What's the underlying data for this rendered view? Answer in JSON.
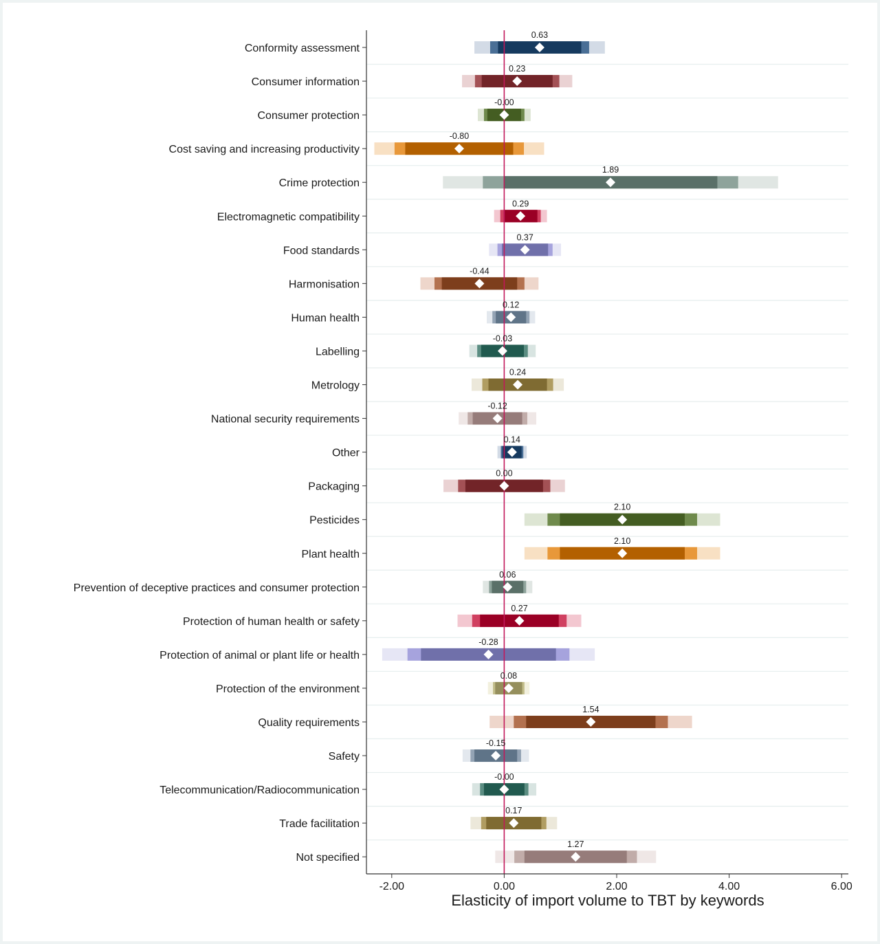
{
  "chart_data": {
    "type": "forest",
    "title": "",
    "xlabel": "Elasticity of import volume to TBT by keywords",
    "ylabel": "",
    "xlim": [
      -2.45,
      6.12
    ],
    "xticks": [
      -2,
      0,
      2,
      4,
      6
    ],
    "xtick_labels": [
      "-2.00",
      "0.00",
      "2.00",
      "4.00",
      "6.00"
    ],
    "reference_line": 0,
    "reference_line_color": "#c2185b",
    "grid": "horizontal",
    "ci_levels": [
      "99%",
      "95%",
      "90%"
    ],
    "rows": [
      {
        "label": "Conformity assessment",
        "value": 0.63,
        "value_label": "0.63",
        "ci99": [
          -0.53,
          1.79
        ],
        "ci95": [
          -0.25,
          1.51
        ],
        "ci90": [
          -0.11,
          1.37
        ],
        "colors": [
          "#d3dbe6",
          "#4a6f96",
          "#163a5f"
        ]
      },
      {
        "label": "Consumer information",
        "value": 0.23,
        "value_label": "0.23",
        "ci99": [
          -0.75,
          1.21
        ],
        "ci95": [
          -0.52,
          0.98
        ],
        "ci90": [
          -0.4,
          0.86
        ],
        "colors": [
          "#ead2d3",
          "#a35155",
          "#722428"
        ]
      },
      {
        "label": "Consumer protection",
        "value": 0.0,
        "value_label": "-0.00",
        "ci99": [
          -0.47,
          0.47
        ],
        "ci95": [
          -0.36,
          0.36
        ],
        "ci90": [
          -0.3,
          0.3
        ],
        "colors": [
          "#dde5d3",
          "#6f8a4c",
          "#445d22"
        ]
      },
      {
        "label": "Cost saving and increasing productivity",
        "value": -0.8,
        "value_label": "-0.80",
        "ci99": [
          -2.31,
          0.71
        ],
        "ci95": [
          -1.95,
          0.35
        ],
        "ci90": [
          -1.76,
          0.16
        ],
        "colors": [
          "#f8e0c3",
          "#e8983a",
          "#b36000"
        ]
      },
      {
        "label": "Crime protection",
        "value": 1.89,
        "value_label": "1.89",
        "ci99": [
          -1.09,
          4.87
        ],
        "ci95": [
          -0.38,
          4.16
        ],
        "ci90": [
          -0.01,
          3.79
        ],
        "colors": [
          "#e0e6e3",
          "#8ea39b",
          "#5a7068"
        ]
      },
      {
        "label": "Electromagnetic compatibility",
        "value": 0.29,
        "value_label": "0.29",
        "ci99": [
          -0.18,
          0.76
        ],
        "ci95": [
          -0.07,
          0.65
        ],
        "ci90": [
          -0.01,
          0.59
        ],
        "colors": [
          "#f3c7d0",
          "#d04060",
          "#9a0025"
        ]
      },
      {
        "label": "Food standards",
        "value": 0.37,
        "value_label": "0.37",
        "ci99": [
          -0.27,
          1.01
        ],
        "ci95": [
          -0.12,
          0.86
        ],
        "ci90": [
          -0.04,
          0.78
        ],
        "colors": [
          "#e6e6f5",
          "#a6a3dd",
          "#7070aa"
        ]
      },
      {
        "label": "Harmonisation",
        "value": -0.44,
        "value_label": "-0.44",
        "ci99": [
          -1.49,
          0.61
        ],
        "ci95": [
          -1.24,
          0.36
        ],
        "ci90": [
          -1.11,
          0.23
        ],
        "colors": [
          "#eed6cb",
          "#b3714f",
          "#7d3e1c"
        ]
      },
      {
        "label": "Human health",
        "value": 0.12,
        "value_label": "0.12",
        "ci99": [
          -0.31,
          0.55
        ],
        "ci95": [
          -0.21,
          0.45
        ],
        "ci90": [
          -0.15,
          0.39
        ],
        "colors": [
          "#e3e8ee",
          "#93a3b4",
          "#5f7488"
        ]
      },
      {
        "label": "Labelling",
        "value": -0.03,
        "value_label": "-0.03",
        "ci99": [
          -0.62,
          0.56
        ],
        "ci95": [
          -0.48,
          0.42
        ],
        "ci90": [
          -0.41,
          0.35
        ],
        "colors": [
          "#d8e4e1",
          "#5b8d82",
          "#215a4f"
        ]
      },
      {
        "label": "Metrology",
        "value": 0.24,
        "value_label": "0.24",
        "ci99": [
          -0.58,
          1.06
        ],
        "ci95": [
          -0.39,
          0.87
        ],
        "ci90": [
          -0.28,
          0.76
        ],
        "colors": [
          "#ece8da",
          "#b09d62",
          "#7f6b32"
        ]
      },
      {
        "label": "National security requirements",
        "value": -0.12,
        "value_label": "-0.12",
        "ci99": [
          -0.81,
          0.57
        ],
        "ci95": [
          -0.65,
          0.41
        ],
        "ci90": [
          -0.56,
          0.32
        ],
        "colors": [
          "#efe7e6",
          "#c1aca9",
          "#967c7a"
        ]
      },
      {
        "label": "Other",
        "value": 0.14,
        "value_label": "0.14",
        "ci99": [
          -0.12,
          0.4
        ],
        "ci95": [
          -0.06,
          0.34
        ],
        "ci90": [
          -0.03,
          0.31
        ],
        "colors": [
          "#d3dbe6",
          "#4a6f96",
          "#163a5f"
        ]
      },
      {
        "label": "Packaging",
        "value": 0.0,
        "value_label": "0.00",
        "ci99": [
          -1.08,
          1.08
        ],
        "ci95": [
          -0.82,
          0.82
        ],
        "ci90": [
          -0.69,
          0.69
        ],
        "colors": [
          "#ead2d3",
          "#a35155",
          "#722428"
        ]
      },
      {
        "label": "Pesticides",
        "value": 2.1,
        "value_label": "2.10",
        "ci99": [
          0.36,
          3.84
        ],
        "ci95": [
          0.77,
          3.43
        ],
        "ci90": [
          0.99,
          3.21
        ],
        "colors": [
          "#dde5d3",
          "#6f8a4c",
          "#445d22"
        ]
      },
      {
        "label": "Plant health",
        "value": 2.1,
        "value_label": "2.10",
        "ci99": [
          0.36,
          3.84
        ],
        "ci95": [
          0.77,
          3.43
        ],
        "ci90": [
          0.99,
          3.21
        ],
        "colors": [
          "#f8e0c3",
          "#e8983a",
          "#b36000"
        ]
      },
      {
        "label": "Prevention of deceptive practices and consumer protection",
        "value": 0.06,
        "value_label": "0.06",
        "ci99": [
          -0.38,
          0.5
        ],
        "ci95": [
          -0.27,
          0.39
        ],
        "ci90": [
          -0.22,
          0.34
        ],
        "colors": [
          "#e0e6e3",
          "#8ea39b",
          "#5a7068"
        ]
      },
      {
        "label": "Protection of human health or safety",
        "value": 0.27,
        "value_label": "0.27",
        "ci99": [
          -0.83,
          1.37
        ],
        "ci95": [
          -0.57,
          1.11
        ],
        "ci90": [
          -0.43,
          0.97
        ],
        "colors": [
          "#f3c7d0",
          "#d04060",
          "#9a0025"
        ]
      },
      {
        "label": "Protection of animal or plant life or health",
        "value": -0.28,
        "value_label": "-0.28",
        "ci99": [
          -2.17,
          1.61
        ],
        "ci95": [
          -1.72,
          1.16
        ],
        "ci90": [
          -1.48,
          0.92
        ],
        "colors": [
          "#e6e6f5",
          "#a6a3dd",
          "#7070aa"
        ]
      },
      {
        "label": "Protection of the environment",
        "value": 0.08,
        "value_label": "0.08",
        "ci99": [
          -0.29,
          0.45
        ],
        "ci95": [
          -0.2,
          0.36
        ],
        "ci90": [
          -0.16,
          0.32
        ],
        "colors": [
          "#f2f0de",
          "#c2bd8a",
          "#958f5d"
        ]
      },
      {
        "label": "Quality requirements",
        "value": 1.54,
        "value_label": "1.54",
        "ci99": [
          -0.26,
          3.34
        ],
        "ci95": [
          0.17,
          2.91
        ],
        "ci90": [
          0.39,
          2.69
        ],
        "colors": [
          "#eed6cb",
          "#b3714f",
          "#7d3e1c"
        ]
      },
      {
        "label": "Safety",
        "value": -0.15,
        "value_label": "-0.15",
        "ci99": [
          -0.74,
          0.44
        ],
        "ci95": [
          -0.6,
          0.3
        ],
        "ci90": [
          -0.53,
          0.23
        ],
        "colors": [
          "#e3e8ee",
          "#93a3b4",
          "#5f7488"
        ]
      },
      {
        "label": "Telecommunication/Radiocommunication",
        "value": 0.0,
        "value_label": "-0.00",
        "ci99": [
          -0.57,
          0.57
        ],
        "ci95": [
          -0.43,
          0.43
        ],
        "ci90": [
          -0.36,
          0.36
        ],
        "colors": [
          "#d8e4e1",
          "#5b8d82",
          "#215a4f"
        ]
      },
      {
        "label": "Trade facilitation",
        "value": 0.17,
        "value_label": "0.17",
        "ci99": [
          -0.6,
          0.94
        ],
        "ci95": [
          -0.41,
          0.75
        ],
        "ci90": [
          -0.32,
          0.66
        ],
        "colors": [
          "#ece8da",
          "#b09d62",
          "#7f6b32"
        ]
      },
      {
        "label": "Not specified",
        "value": 1.27,
        "value_label": "1.27",
        "ci99": [
          -0.16,
          2.7
        ],
        "ci95": [
          0.18,
          2.36
        ],
        "ci90": [
          0.36,
          2.18
        ],
        "colors": [
          "#efe7e6",
          "#c1aca9",
          "#967c7a"
        ]
      }
    ]
  }
}
